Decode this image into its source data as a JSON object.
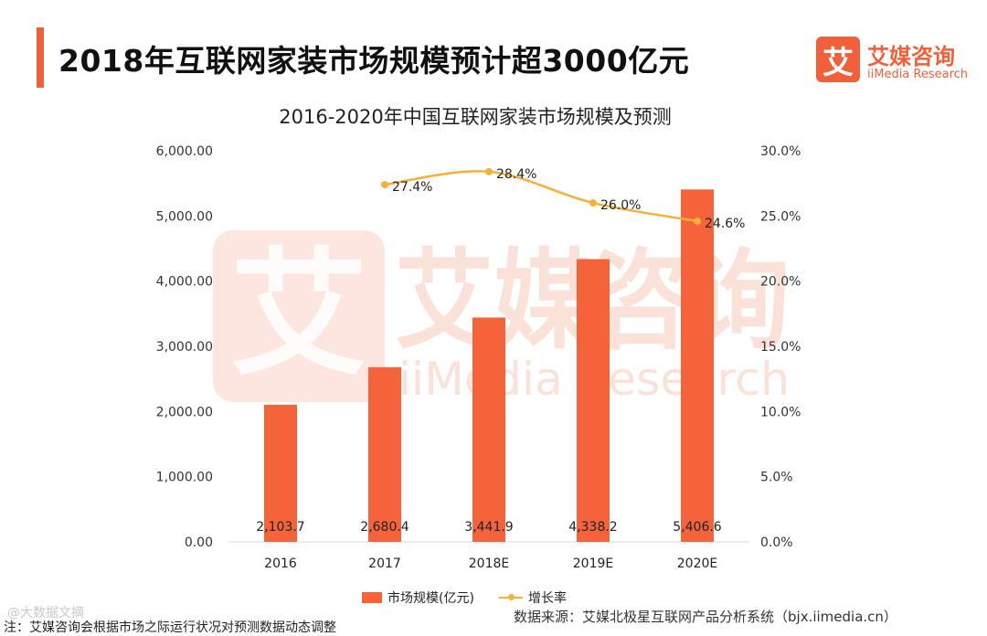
{
  "header": {
    "headline": "2018年互联网家装市场规模预计超3000亿元"
  },
  "logo": {
    "mark": "艾",
    "name_cn": "艾媒咨询",
    "name_en": "iiMedia Research"
  },
  "chart_data": {
    "type": "bar+line",
    "title": "2016-2020年中国互联网家装市场规模及预测",
    "categories": [
      "2016",
      "2017",
      "2018E",
      "2019E",
      "2020E"
    ],
    "series": [
      {
        "name": "市场规模(亿元)",
        "type": "bar",
        "axis": "left",
        "values": [
          2103.7,
          2680.4,
          3441.9,
          4338.2,
          5406.6
        ],
        "labels": [
          "2,103.7",
          "2,680.4",
          "3,441.9",
          "4,338.2",
          "5,406.6"
        ],
        "color": "#f4633a"
      },
      {
        "name": "增长率",
        "type": "line",
        "axis": "right",
        "values": [
          null,
          27.4,
          28.4,
          26.0,
          24.6
        ],
        "labels": [
          "",
          "27.4%",
          "28.4%",
          "26.0%",
          "24.6%"
        ],
        "color": "#f5b03a"
      }
    ],
    "left_axis": {
      "min": 0,
      "max": 6000,
      "ticks": [
        0,
        1000,
        2000,
        3000,
        4000,
        5000,
        6000
      ],
      "tick_labels": [
        "0.00",
        "1,000.00",
        "2,000.00",
        "3,000.00",
        "4,000.00",
        "5,000.00",
        "6,000.00"
      ]
    },
    "right_axis": {
      "min": 0,
      "max": 30,
      "ticks": [
        0,
        5,
        10,
        15,
        20,
        25,
        30
      ],
      "tick_labels": [
        "0.0%",
        "5.0%",
        "10.0%",
        "15.0%",
        "20.0%",
        "25.0%",
        "30.0%"
      ]
    },
    "grid": false,
    "legend_position": "bottom"
  },
  "watermark": {
    "cn": "艾媒咨询",
    "en": "iiMedia Research",
    "corner": "@大数据文摘"
  },
  "footer": {
    "note": "注：艾媒咨询会根据市场之际运行状况对预测数据动态调整",
    "source": "数据来源：艾媒北极星互联网产品分析系统（bjx.iimedia.cn）"
  }
}
